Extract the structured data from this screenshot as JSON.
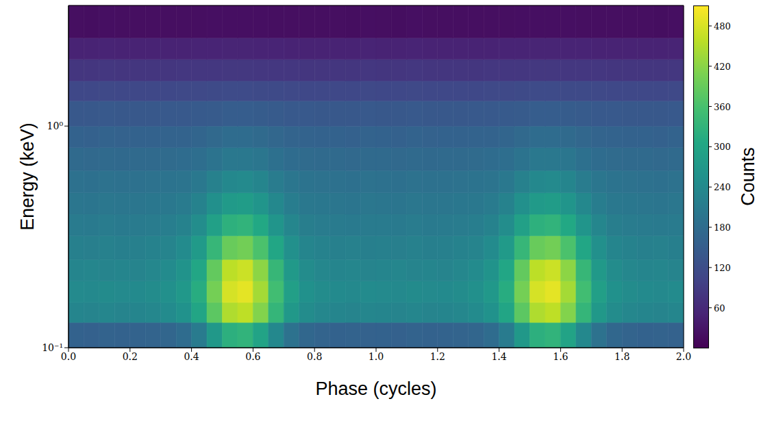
{
  "chart_data": {
    "type": "heatmap",
    "x_label": "Phase (cycles)",
    "y_label": "Energy (keV)",
    "log": "y",
    "xlim": [
      0,
      2
    ],
    "xticks": [
      {
        "value": 0,
        "label": "0.0"
      },
      0.2,
      0.4,
      0.6,
      0.8,
      {
        "value": 1,
        "label": "1.0"
      },
      1.2,
      1.4,
      1.6,
      1.8,
      {
        "value": 2,
        "label": "2.0"
      }
    ],
    "ylim": [
      0.1,
      3.5
    ],
    "yticks": [
      {
        "value": 0.1,
        "label": "10⁻¹"
      },
      {
        "value": 1,
        "label": "10⁰"
      }
    ],
    "x_bins": [
      0,
      0.05,
      0.1,
      0.15,
      0.2,
      0.25,
      0.3,
      0.35,
      0.4,
      0.45,
      0.5,
      0.55,
      0.6,
      0.65,
      0.7,
      0.75,
      0.8,
      0.85,
      0.9,
      0.95,
      1,
      1.05,
      1.1,
      1.15,
      1.2,
      1.25,
      1.3,
      1.35,
      1.4,
      1.45,
      1.5,
      1.55,
      1.6,
      1.65,
      1.7,
      1.75,
      1.8,
      1.85,
      1.9,
      1.95,
      2
    ],
    "y_bins": [
      0.1,
      0.13,
      0.16,
      0.2,
      0.25,
      0.32,
      0.4,
      0.5,
      0.63,
      0.8,
      1,
      1.3,
      1.6,
      2,
      2.5,
      3.5
    ],
    "cells": [
      [
        160,
        158,
        162,
        160,
        161,
        163,
        168,
        180,
        211,
        271,
        322,
        330,
        296,
        237,
        191,
        170,
        163,
        160,
        162,
        159,
        160,
        158,
        162,
        160,
        161,
        163,
        168,
        180,
        211,
        271,
        322,
        330,
        296,
        237,
        191,
        170,
        163,
        160,
        162,
        159
      ],
      [
        230,
        228,
        232,
        229,
        231,
        235,
        242,
        258,
        299,
        380,
        448,
        460,
        414,
        334,
        271,
        244,
        235,
        231,
        229,
        232,
        230,
        228,
        232,
        229,
        231,
        235,
        242,
        258,
        299,
        380,
        448,
        460,
        414,
        334,
        271,
        244,
        235,
        231,
        229,
        232
      ],
      [
        240,
        238,
        243,
        240,
        241,
        245,
        252,
        270,
        315,
        402,
        478,
        490,
        440,
        352,
        285,
        255,
        245,
        241,
        239,
        242,
        240,
        238,
        243,
        240,
        241,
        245,
        252,
        270,
        315,
        402,
        478,
        490,
        440,
        352,
        285,
        255,
        245,
        241,
        239,
        242
      ],
      [
        230,
        232,
        228,
        231,
        229,
        235,
        242,
        259,
        302,
        386,
        458,
        470,
        422,
        338,
        273,
        245,
        235,
        230,
        232,
        229,
        230,
        232,
        228,
        231,
        229,
        235,
        242,
        259,
        302,
        386,
        458,
        470,
        422,
        338,
        273,
        245,
        235,
        230,
        232,
        229
      ],
      [
        220,
        218,
        222,
        219,
        221,
        224,
        229,
        242,
        274,
        337,
        391,
        400,
        364,
        301,
        252,
        231,
        224,
        220,
        222,
        219,
        220,
        218,
        222,
        219,
        221,
        224,
        229,
        242,
        274,
        337,
        391,
        400,
        364,
        301,
        252,
        231,
        224,
        220,
        222,
        219
      ],
      [
        210,
        208,
        212,
        209,
        211,
        212,
        216,
        224,
        246,
        288,
        324,
        330,
        306,
        264,
        232,
        217,
        212,
        210,
        208,
        211,
        210,
        208,
        212,
        209,
        211,
        212,
        216,
        224,
        246,
        288,
        324,
        330,
        306,
        264,
        232,
        217,
        212,
        210,
        208,
        211
      ],
      [
        200,
        198,
        201,
        199,
        200,
        202,
        204,
        210,
        224,
        252,
        276,
        280,
        264,
        236,
        214,
        205,
        202,
        200,
        198,
        201,
        200,
        198,
        201,
        199,
        200,
        202,
        204,
        210,
        224,
        252,
        276,
        280,
        264,
        236,
        214,
        205,
        202,
        200,
        198,
        201
      ],
      [
        190,
        188,
        191,
        189,
        190,
        191,
        193,
        196,
        205,
        222,
        237,
        240,
        230,
        212,
        199,
        193,
        191,
        190,
        188,
        191,
        190,
        188,
        191,
        189,
        190,
        191,
        193,
        196,
        205,
        222,
        237,
        240,
        230,
        212,
        199,
        193,
        191,
        190,
        188,
        191
      ],
      [
        175,
        173,
        176,
        174,
        175,
        176,
        177,
        179,
        184,
        194,
        203,
        205,
        199,
        188,
        180,
        177,
        176,
        175,
        173,
        176,
        175,
        173,
        176,
        174,
        175,
        176,
        177,
        179,
        184,
        194,
        203,
        205,
        199,
        188,
        180,
        177,
        176,
        175,
        173,
        176
      ],
      [
        160,
        158,
        161,
        159,
        160,
        160,
        161,
        162,
        166,
        173,
        179,
        180,
        176,
        169,
        164,
        161,
        160,
        160,
        158,
        161,
        160,
        158,
        161,
        159,
        160,
        160,
        161,
        162,
        166,
        173,
        179,
        180,
        176,
        169,
        164,
        161,
        160,
        160,
        158,
        161
      ],
      [
        140,
        139,
        141,
        140,
        140,
        140,
        141,
        141,
        143,
        146,
        149,
        150,
        148,
        145,
        142,
        141,
        140,
        140,
        139,
        141,
        140,
        139,
        141,
        140,
        140,
        140,
        141,
        141,
        143,
        146,
        149,
        150,
        148,
        145,
        142,
        141,
        140,
        140,
        139,
        141
      ],
      [
        110,
        109,
        111,
        110,
        110,
        110,
        110,
        111,
        112,
        113,
        115,
        115,
        114,
        113,
        111,
        110,
        110,
        110,
        109,
        111,
        110,
        109,
        111,
        110,
        110,
        110,
        110,
        111,
        112,
        113,
        115,
        115,
        114,
        113,
        111,
        110,
        110,
        110,
        109,
        111
      ],
      [
        80,
        79,
        81,
        80,
        80,
        80,
        80,
        81,
        81,
        82,
        83,
        83,
        82,
        82,
        81,
        80,
        80,
        80,
        79,
        81,
        80,
        79,
        81,
        80,
        80,
        80,
        80,
        81,
        81,
        82,
        83,
        83,
        82,
        82,
        81,
        80,
        80,
        80,
        79,
        81
      ],
      [
        50,
        49,
        51,
        50,
        50,
        50,
        50,
        50,
        51,
        51,
        52,
        52,
        51,
        51,
        50,
        50,
        50,
        50,
        49,
        51,
        50,
        49,
        51,
        50,
        50,
        50,
        50,
        50,
        51,
        51,
        52,
        52,
        51,
        51,
        50,
        50,
        50,
        50,
        49,
        51
      ],
      [
        20,
        19,
        21,
        20,
        20,
        20,
        20,
        20,
        20,
        21,
        21,
        21,
        21,
        20,
        20,
        20,
        20,
        20,
        19,
        21,
        20,
        19,
        21,
        20,
        20,
        20,
        20,
        20,
        20,
        21,
        21,
        21,
        21,
        20,
        20,
        20,
        20,
        20,
        19,
        21
      ]
    ],
    "colorbar": {
      "label": "Counts",
      "range": [
        0,
        510
      ],
      "ticks": [
        60,
        120,
        180,
        240,
        300,
        360,
        420,
        480
      ]
    }
  }
}
